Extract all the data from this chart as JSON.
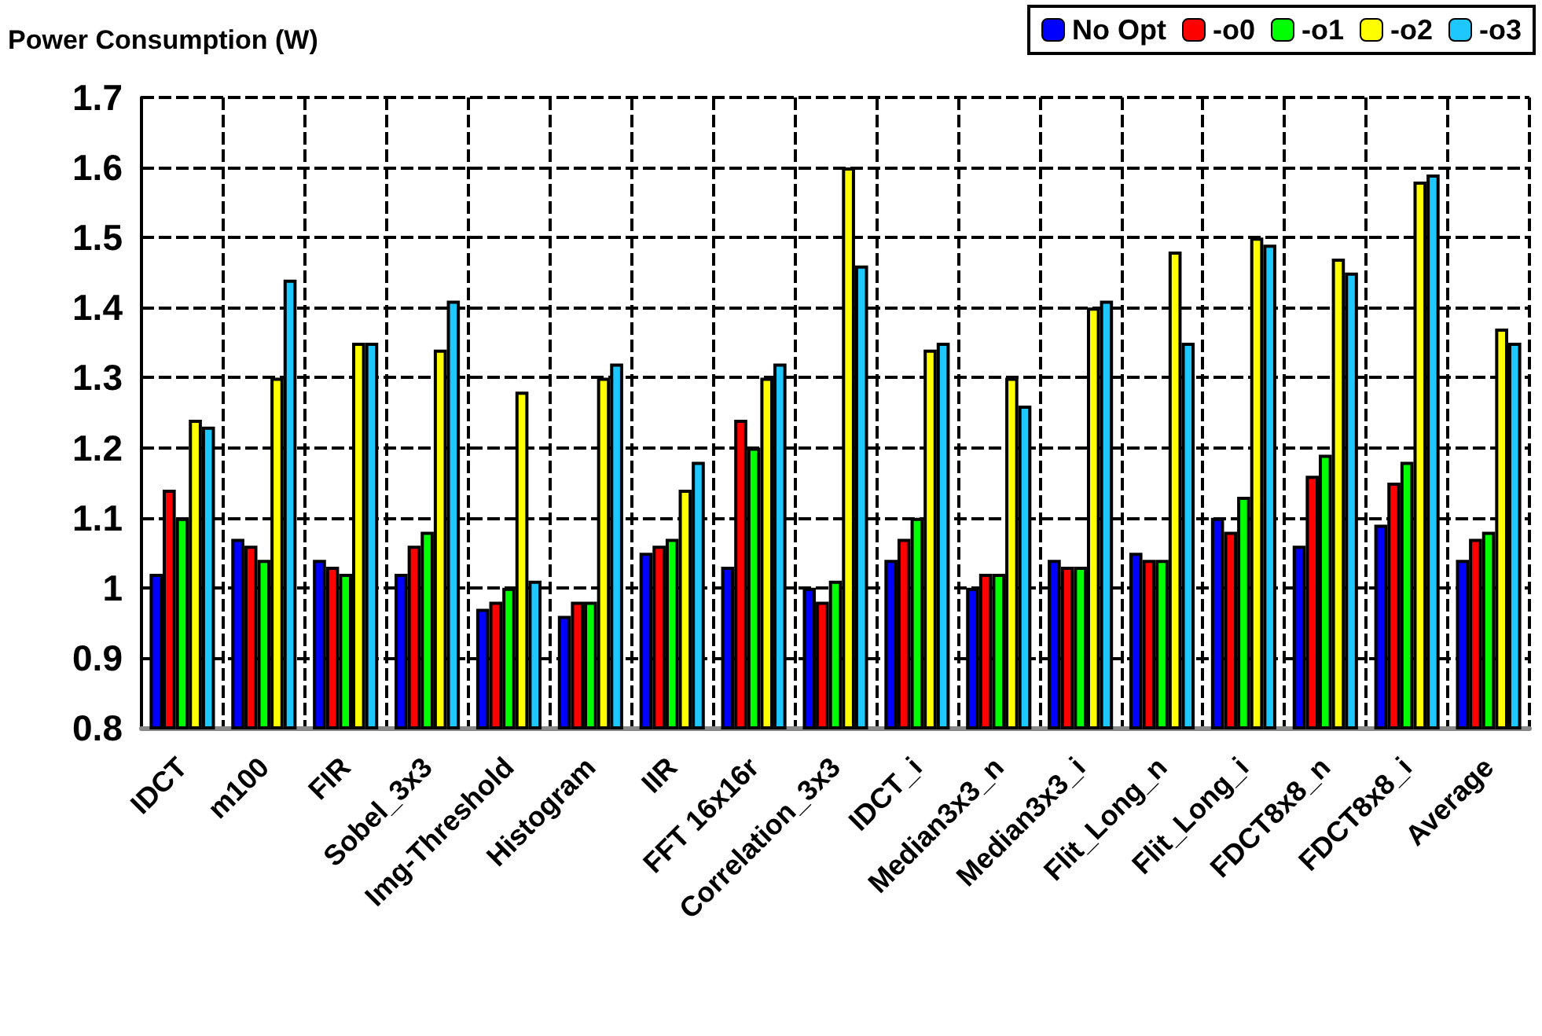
{
  "chart_data": {
    "type": "bar",
    "title": "Power Consumption (W)",
    "categories": [
      "IDCT",
      "m100",
      "FIR",
      "Sobel_3x3",
      "Img-Threshold",
      "Histogram",
      "IIR",
      "FFT 16x16r",
      "Correlation_3x3",
      "IDCT_i",
      "Median3x3_n",
      "Median3x3_i",
      "Flit_Long_n",
      "Flit_Long_i",
      "FDCT8x8_n",
      "FDCT8x8_i",
      "Average"
    ],
    "series": [
      {
        "name": "No Opt",
        "color": "#0000ff",
        "values": [
          1.02,
          1.07,
          1.04,
          1.02,
          0.97,
          0.96,
          1.05,
          1.03,
          1.0,
          1.04,
          1.0,
          1.04,
          1.05,
          1.1,
          1.06,
          1.09,
          1.04
        ]
      },
      {
        "name": "-o0",
        "color": "#ff0000",
        "values": [
          1.14,
          1.06,
          1.03,
          1.06,
          0.98,
          0.98,
          1.06,
          1.24,
          0.98,
          1.07,
          1.02,
          1.03,
          1.04,
          1.08,
          1.16,
          1.15,
          1.07
        ]
      },
      {
        "name": "-o1",
        "color": "#00ff00",
        "values": [
          1.1,
          1.04,
          1.02,
          1.08,
          1.0,
          0.98,
          1.07,
          1.2,
          1.01,
          1.1,
          1.02,
          1.03,
          1.04,
          1.13,
          1.19,
          1.18,
          1.08
        ]
      },
      {
        "name": "-o2",
        "color": "#ffff00",
        "values": [
          1.24,
          1.3,
          1.35,
          1.34,
          1.28,
          1.3,
          1.14,
          1.3,
          1.6,
          1.34,
          1.3,
          1.4,
          1.48,
          1.5,
          1.47,
          1.58,
          1.37
        ]
      },
      {
        "name": "-o3",
        "color": "#1ec8ff",
        "values": [
          1.23,
          1.44,
          1.35,
          1.41,
          1.01,
          1.32,
          1.18,
          1.32,
          1.46,
          1.35,
          1.26,
          1.41,
          1.35,
          1.49,
          1.45,
          1.59,
          1.35
        ]
      }
    ],
    "ylim": [
      0.8,
      1.7
    ],
    "yticks": [
      0.8,
      0.9,
      1,
      1.1,
      1.2,
      1.3,
      1.4,
      1.5,
      1.6,
      1.7
    ],
    "grid": true,
    "legend": "top right"
  }
}
